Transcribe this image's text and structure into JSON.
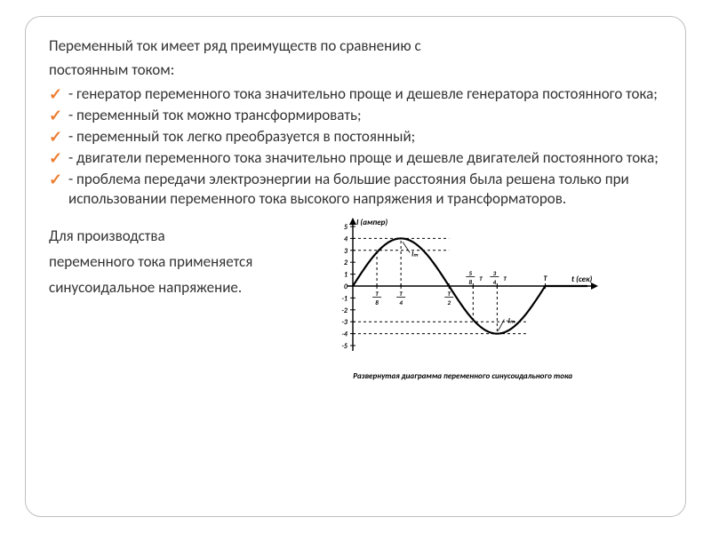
{
  "intro_line1": "Переменный ток имеет ряд преимуществ по сравнению с",
  "intro_line2": "постоянным током:",
  "bullets": [
    "- генератор переменного тока значительно проще и дешевле генератора постоянного тока;",
    "- переменный ток можно трансформировать;",
    "- переменный ток легко преобразуется в постоянный;",
    "- двигатели переменного тока значительно проще и дешевле двигателей постоянного токa;",
    "- проблема передачи электроэнергии на большие расстояния была решена только при использовании переменного тока высокого напряжения и трансформаторов."
  ],
  "lower1": "Для производства",
  "lower2": "переменного тока применяется",
  "lower3": "синусоидальное напряжение.",
  "chart": {
    "y_label": "I (ампер)",
    "x_label": "t (сек)",
    "caption": "Развернутая диаграмма переменного синусоидального тока",
    "y_ticks": [
      "5",
      "4",
      "3",
      "2",
      "1",
      "0",
      "-1",
      "-2",
      "-3",
      "-4",
      "-5"
    ],
    "x_fracs": [
      {
        "num": "T",
        "den": "8"
      },
      {
        "num": "T",
        "den": "4"
      },
      {
        "num": "T",
        "den": "2"
      },
      {
        "num": "5",
        "den": "8",
        "suffix": "T"
      },
      {
        "num": "3",
        "den": "4",
        "suffix": "T"
      }
    ],
    "T_label": "T",
    "Im_pos": "Iₘ",
    "Im_neg": "-Iₘ",
    "amplitude": 4,
    "ylim": [
      -5,
      5
    ],
    "line_color": "#000000",
    "line_width": 2.2,
    "dash_color": "#000000",
    "background": "#ffffff",
    "axis_color": "#000000"
  }
}
